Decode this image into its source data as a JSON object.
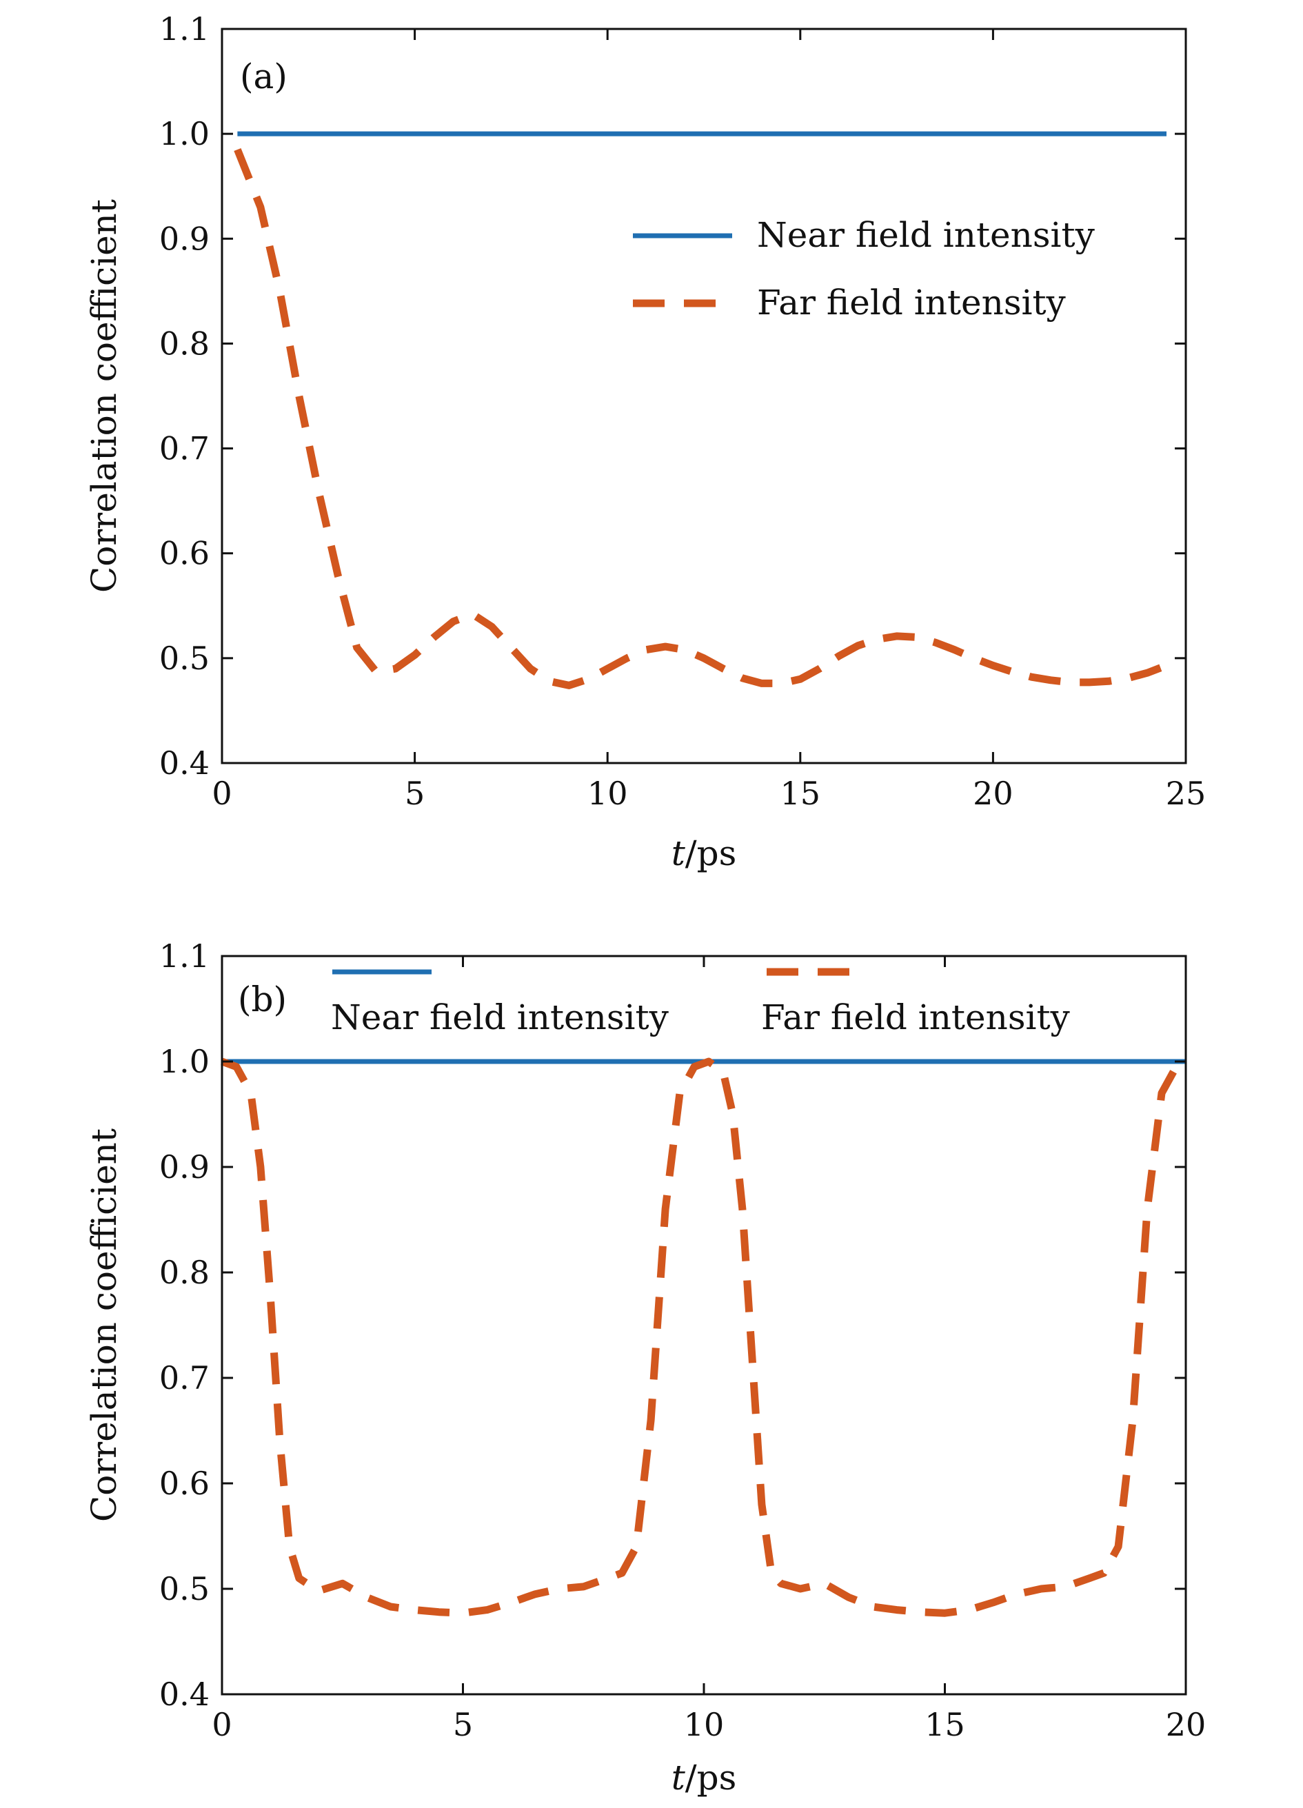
{
  "chart_data": [
    {
      "type": "line",
      "panel_label": "(a)",
      "xlabel_var": "t",
      "xlabel_unit": "/ps",
      "ylabel": "Correlation coefficient",
      "xlim": [
        0,
        25
      ],
      "ylim": [
        0.4,
        1.1
      ],
      "x_ticks": [
        "0",
        "5",
        "10",
        "15",
        "20",
        "25"
      ],
      "y_ticks": [
        "0.4",
        "0.5",
        "0.6",
        "0.7",
        "0.8",
        "0.9",
        "1.0",
        "1.1"
      ],
      "legend_position": "upper-right",
      "series": [
        {
          "name": "Near field intensity",
          "color": "#1f6fb2",
          "style": "solid",
          "x": [
            0.4,
            24.5
          ],
          "y": [
            1.0,
            1.0
          ]
        },
        {
          "name": "Far field intensity",
          "color": "#d2571e",
          "style": "dashed",
          "x": [
            0.4,
            1.0,
            1.5,
            2.0,
            2.5,
            3.0,
            3.5,
            4.0,
            4.5,
            5.0,
            5.5,
            6.0,
            6.5,
            7.0,
            7.5,
            8.0,
            8.5,
            9.0,
            9.5,
            10.0,
            10.5,
            11.0,
            11.5,
            12.0,
            12.5,
            13.0,
            13.5,
            14.0,
            14.5,
            15.0,
            15.5,
            16.0,
            16.5,
            17.0,
            17.5,
            18.0,
            18.5,
            19.0,
            19.5,
            20.0,
            20.5,
            21.0,
            21.5,
            22.0,
            22.5,
            23.0,
            23.5,
            24.0,
            24.5
          ],
          "y": [
            0.985,
            0.93,
            0.85,
            0.75,
            0.66,
            0.58,
            0.51,
            0.487,
            0.49,
            0.503,
            0.52,
            0.535,
            0.542,
            0.53,
            0.51,
            0.49,
            0.478,
            0.474,
            0.48,
            0.49,
            0.5,
            0.508,
            0.511,
            0.508,
            0.5,
            0.49,
            0.481,
            0.476,
            0.476,
            0.48,
            0.49,
            0.502,
            0.512,
            0.518,
            0.521,
            0.52,
            0.515,
            0.508,
            0.5,
            0.493,
            0.487,
            0.482,
            0.479,
            0.477,
            0.477,
            0.478,
            0.481,
            0.486,
            0.493
          ]
        }
      ]
    },
    {
      "type": "line",
      "panel_label": "(b)",
      "xlabel_var": "t",
      "xlabel_unit": "/ps",
      "ylabel": "Correlation coefficient",
      "xlim": [
        0,
        20
      ],
      "ylim": [
        0.4,
        1.1
      ],
      "x_ticks": [
        "0",
        "5",
        "10",
        "15",
        "20"
      ],
      "y_ticks": [
        "0.4",
        "0.5",
        "0.6",
        "0.7",
        "0.8",
        "0.9",
        "1.0",
        "1.1"
      ],
      "legend_position": "top",
      "series": [
        {
          "name": "Near field intensity",
          "color": "#1f6fb2",
          "style": "solid",
          "x": [
            0.0,
            20.0
          ],
          "y": [
            1.0,
            1.0
          ]
        },
        {
          "name": "Far field intensity",
          "color": "#d2571e",
          "style": "dashed",
          "x": [
            0.0,
            0.3,
            0.6,
            0.8,
            1.0,
            1.2,
            1.4,
            1.6,
            2.0,
            2.5,
            3.0,
            3.5,
            4.0,
            4.5,
            5.0,
            5.5,
            6.0,
            6.5,
            7.0,
            7.5,
            8.0,
            8.3,
            8.6,
            8.9,
            9.2,
            9.5,
            9.8,
            10.1,
            10.4,
            10.6,
            10.8,
            11.0,
            11.2,
            11.4,
            11.6,
            12.0,
            12.5,
            13.0,
            13.5,
            14.0,
            14.5,
            15.0,
            15.5,
            16.0,
            16.5,
            17.0,
            17.5,
            18.0,
            18.3,
            18.6,
            18.9,
            19.2,
            19.5,
            19.8,
            20.0
          ],
          "y": [
            1.0,
            0.995,
            0.97,
            0.9,
            0.78,
            0.64,
            0.54,
            0.51,
            0.498,
            0.505,
            0.492,
            0.483,
            0.48,
            0.478,
            0.477,
            0.48,
            0.487,
            0.495,
            0.5,
            0.502,
            0.51,
            0.515,
            0.54,
            0.66,
            0.86,
            0.97,
            0.995,
            1.0,
            0.99,
            0.95,
            0.86,
            0.72,
            0.58,
            0.515,
            0.505,
            0.5,
            0.505,
            0.492,
            0.483,
            0.48,
            0.478,
            0.477,
            0.48,
            0.487,
            0.495,
            0.5,
            0.502,
            0.51,
            0.515,
            0.54,
            0.66,
            0.86,
            0.97,
            0.995,
            1.0
          ]
        }
      ]
    }
  ]
}
